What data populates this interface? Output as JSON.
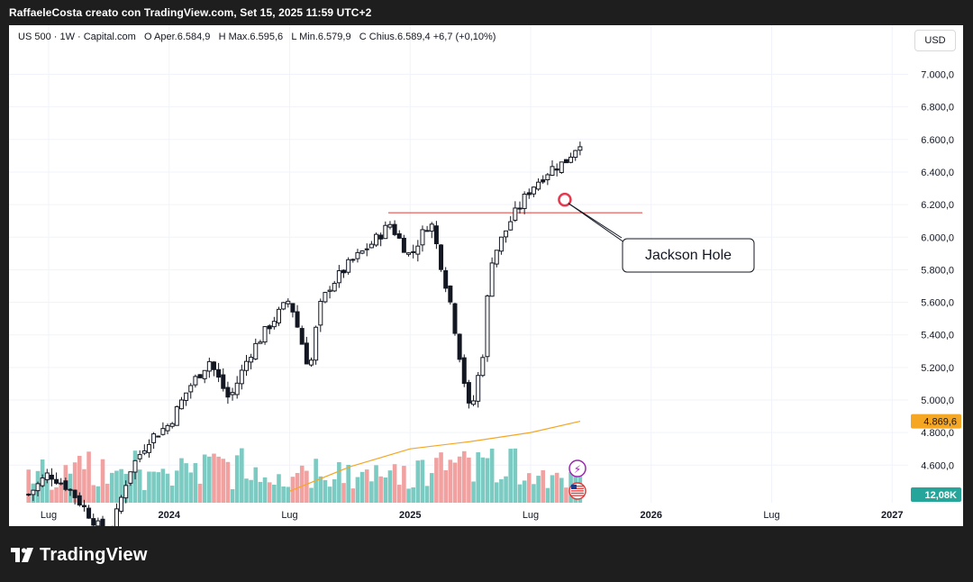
{
  "header": {
    "credit": "RaffaeleCosta creato con TradingView.com, Set 15, 2025 11:59 UTC+2"
  },
  "legend": {
    "symbol": "US 500 · 1W · Capital.com",
    "o_label": "O",
    "o_value": "Aper.6.584,9",
    "h_label": "H",
    "h_value": "Max.6.595,6",
    "l_label": "L",
    "l_value": "Min.6.579,9",
    "c_label": "C",
    "c_value": "Chius.6.589,4",
    "change": "+6,7 (+0,10%)"
  },
  "currency_button": "USD",
  "annotation": {
    "label": "Jackson Hole",
    "resistance_level": 6150
  },
  "moving_average_label": "4.869,6",
  "volume_label": "12,08K",
  "footer": {
    "brand": "TradingView"
  },
  "colors": {
    "up_volume": "#7ccbc3",
    "down_volume": "#f2a1a1",
    "candle": "#131722",
    "ma_line": "#f5a623",
    "resistance_line": "#e53935",
    "marker": "#e53950",
    "ma_badge": "#f5a623",
    "volume_badge": "#26a69a"
  },
  "chart_data": {
    "type": "candlestick",
    "y_axis": {
      "min": 4450,
      "max": 7150,
      "ticks": [
        7000,
        6800,
        6600,
        6400,
        6200,
        6000,
        5800,
        5600,
        5400,
        5200,
        5000,
        4800,
        4600
      ],
      "tick_labels": [
        "7.000,0",
        "6.800,0",
        "6.600,0",
        "6.400,0",
        "6.200,0",
        "6.000,0",
        "5.800,0",
        "5.600,0",
        "5.400,0",
        "5.200,0",
        "5.000,0",
        "4.800,0",
        "4.600,0"
      ]
    },
    "x_axis": {
      "labels": [
        "Lug",
        "2024",
        "Lug",
        "2025",
        "Lug",
        "2026",
        "Lug",
        "2027"
      ],
      "label_dates": [
        "2023-07",
        "2024-01",
        "2024-07",
        "2025-01",
        "2025-07",
        "2026-01",
        "2026-07",
        "2027-01"
      ],
      "bold": [
        false,
        true,
        false,
        true,
        false,
        true,
        false,
        true
      ]
    },
    "series": [
      {
        "kind": "candles_weekly_approx",
        "start": "2023-06",
        "end": "2025-09-15",
        "waypoints": [
          {
            "date": "2023-06",
            "close": 4420
          },
          {
            "date": "2023-07",
            "close": 4550
          },
          {
            "date": "2023-08",
            "close": 4460
          },
          {
            "date": "2023-09",
            "close": 4300
          },
          {
            "date": "2023-10",
            "close": 4140
          },
          {
            "date": "2023-11",
            "close": 4560
          },
          {
            "date": "2023-12",
            "close": 4760
          },
          {
            "date": "2024-01",
            "close": 4850
          },
          {
            "date": "2024-02",
            "close": 5080
          },
          {
            "date": "2024-03",
            "close": 5240
          },
          {
            "date": "2024-04",
            "close": 5000
          },
          {
            "date": "2024-05",
            "close": 5280
          },
          {
            "date": "2024-06",
            "close": 5460
          },
          {
            "date": "2024-07",
            "close": 5620
          },
          {
            "date": "2024-08",
            "close": 5180
          },
          {
            "date": "2024-08-15",
            "close": 5560
          },
          {
            "date": "2024-09",
            "close": 5700
          },
          {
            "date": "2024-10",
            "close": 5840
          },
          {
            "date": "2024-11",
            "close": 5950
          },
          {
            "date": "2024-12",
            "close": 6080
          },
          {
            "date": "2025-01",
            "close": 5880
          },
          {
            "date": "2025-02",
            "close": 6110
          },
          {
            "date": "2025-03",
            "close": 5600
          },
          {
            "date": "2025-04",
            "close": 4900
          },
          {
            "date": "2025-04-20",
            "close": 5300
          },
          {
            "date": "2025-05",
            "close": 5850
          },
          {
            "date": "2025-06",
            "close": 6100
          },
          {
            "date": "2025-07",
            "close": 6300
          },
          {
            "date": "2025-08",
            "close": 6420
          },
          {
            "date": "2025-08-22",
            "close": 6460
          },
          {
            "date": "2025-09-15",
            "close": 6589
          }
        ]
      },
      {
        "kind": "moving_average",
        "points": [
          {
            "date": "2024-07",
            "value": 4440
          },
          {
            "date": "2024-10",
            "value": 4590
          },
          {
            "date": "2025-01",
            "value": 4700
          },
          {
            "date": "2025-04",
            "value": 4745
          },
          {
            "date": "2025-07",
            "value": 4800
          },
          {
            "date": "2025-09-15",
            "value": 4869.6
          }
        ]
      }
    ]
  }
}
